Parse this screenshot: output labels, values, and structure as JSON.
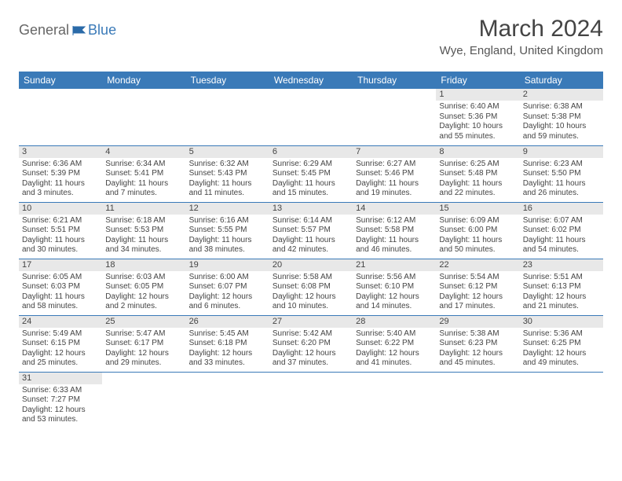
{
  "logo": {
    "general": "General",
    "blue": "Blue"
  },
  "title": "March 2024",
  "location": "Wye, England, United Kingdom",
  "colors": {
    "header_bg": "#3a7ab8",
    "header_text": "#ffffff",
    "daynum_bg": "#e8e8e8",
    "row_border": "#3a7ab8",
    "body_text": "#444444"
  },
  "typography": {
    "title_fontsize": 30,
    "location_fontsize": 15,
    "header_fontsize": 12,
    "daynum_fontsize": 11,
    "data_fontsize": 10
  },
  "day_headers": [
    "Sunday",
    "Monday",
    "Tuesday",
    "Wednesday",
    "Thursday",
    "Friday",
    "Saturday"
  ],
  "weeks": [
    [
      null,
      null,
      null,
      null,
      null,
      {
        "n": "1",
        "sunrise": "Sunrise: 6:40 AM",
        "sunset": "Sunset: 5:36 PM",
        "daylight": "Daylight: 10 hours and 55 minutes."
      },
      {
        "n": "2",
        "sunrise": "Sunrise: 6:38 AM",
        "sunset": "Sunset: 5:38 PM",
        "daylight": "Daylight: 10 hours and 59 minutes."
      }
    ],
    [
      {
        "n": "3",
        "sunrise": "Sunrise: 6:36 AM",
        "sunset": "Sunset: 5:39 PM",
        "daylight": "Daylight: 11 hours and 3 minutes."
      },
      {
        "n": "4",
        "sunrise": "Sunrise: 6:34 AM",
        "sunset": "Sunset: 5:41 PM",
        "daylight": "Daylight: 11 hours and 7 minutes."
      },
      {
        "n": "5",
        "sunrise": "Sunrise: 6:32 AM",
        "sunset": "Sunset: 5:43 PM",
        "daylight": "Daylight: 11 hours and 11 minutes."
      },
      {
        "n": "6",
        "sunrise": "Sunrise: 6:29 AM",
        "sunset": "Sunset: 5:45 PM",
        "daylight": "Daylight: 11 hours and 15 minutes."
      },
      {
        "n": "7",
        "sunrise": "Sunrise: 6:27 AM",
        "sunset": "Sunset: 5:46 PM",
        "daylight": "Daylight: 11 hours and 19 minutes."
      },
      {
        "n": "8",
        "sunrise": "Sunrise: 6:25 AM",
        "sunset": "Sunset: 5:48 PM",
        "daylight": "Daylight: 11 hours and 22 minutes."
      },
      {
        "n": "9",
        "sunrise": "Sunrise: 6:23 AM",
        "sunset": "Sunset: 5:50 PM",
        "daylight": "Daylight: 11 hours and 26 minutes."
      }
    ],
    [
      {
        "n": "10",
        "sunrise": "Sunrise: 6:21 AM",
        "sunset": "Sunset: 5:51 PM",
        "daylight": "Daylight: 11 hours and 30 minutes."
      },
      {
        "n": "11",
        "sunrise": "Sunrise: 6:18 AM",
        "sunset": "Sunset: 5:53 PM",
        "daylight": "Daylight: 11 hours and 34 minutes."
      },
      {
        "n": "12",
        "sunrise": "Sunrise: 6:16 AM",
        "sunset": "Sunset: 5:55 PM",
        "daylight": "Daylight: 11 hours and 38 minutes."
      },
      {
        "n": "13",
        "sunrise": "Sunrise: 6:14 AM",
        "sunset": "Sunset: 5:57 PM",
        "daylight": "Daylight: 11 hours and 42 minutes."
      },
      {
        "n": "14",
        "sunrise": "Sunrise: 6:12 AM",
        "sunset": "Sunset: 5:58 PM",
        "daylight": "Daylight: 11 hours and 46 minutes."
      },
      {
        "n": "15",
        "sunrise": "Sunrise: 6:09 AM",
        "sunset": "Sunset: 6:00 PM",
        "daylight": "Daylight: 11 hours and 50 minutes."
      },
      {
        "n": "16",
        "sunrise": "Sunrise: 6:07 AM",
        "sunset": "Sunset: 6:02 PM",
        "daylight": "Daylight: 11 hours and 54 minutes."
      }
    ],
    [
      {
        "n": "17",
        "sunrise": "Sunrise: 6:05 AM",
        "sunset": "Sunset: 6:03 PM",
        "daylight": "Daylight: 11 hours and 58 minutes."
      },
      {
        "n": "18",
        "sunrise": "Sunrise: 6:03 AM",
        "sunset": "Sunset: 6:05 PM",
        "daylight": "Daylight: 12 hours and 2 minutes."
      },
      {
        "n": "19",
        "sunrise": "Sunrise: 6:00 AM",
        "sunset": "Sunset: 6:07 PM",
        "daylight": "Daylight: 12 hours and 6 minutes."
      },
      {
        "n": "20",
        "sunrise": "Sunrise: 5:58 AM",
        "sunset": "Sunset: 6:08 PM",
        "daylight": "Daylight: 12 hours and 10 minutes."
      },
      {
        "n": "21",
        "sunrise": "Sunrise: 5:56 AM",
        "sunset": "Sunset: 6:10 PM",
        "daylight": "Daylight: 12 hours and 14 minutes."
      },
      {
        "n": "22",
        "sunrise": "Sunrise: 5:54 AM",
        "sunset": "Sunset: 6:12 PM",
        "daylight": "Daylight: 12 hours and 17 minutes."
      },
      {
        "n": "23",
        "sunrise": "Sunrise: 5:51 AM",
        "sunset": "Sunset: 6:13 PM",
        "daylight": "Daylight: 12 hours and 21 minutes."
      }
    ],
    [
      {
        "n": "24",
        "sunrise": "Sunrise: 5:49 AM",
        "sunset": "Sunset: 6:15 PM",
        "daylight": "Daylight: 12 hours and 25 minutes."
      },
      {
        "n": "25",
        "sunrise": "Sunrise: 5:47 AM",
        "sunset": "Sunset: 6:17 PM",
        "daylight": "Daylight: 12 hours and 29 minutes."
      },
      {
        "n": "26",
        "sunrise": "Sunrise: 5:45 AM",
        "sunset": "Sunset: 6:18 PM",
        "daylight": "Daylight: 12 hours and 33 minutes."
      },
      {
        "n": "27",
        "sunrise": "Sunrise: 5:42 AM",
        "sunset": "Sunset: 6:20 PM",
        "daylight": "Daylight: 12 hours and 37 minutes."
      },
      {
        "n": "28",
        "sunrise": "Sunrise: 5:40 AM",
        "sunset": "Sunset: 6:22 PM",
        "daylight": "Daylight: 12 hours and 41 minutes."
      },
      {
        "n": "29",
        "sunrise": "Sunrise: 5:38 AM",
        "sunset": "Sunset: 6:23 PM",
        "daylight": "Daylight: 12 hours and 45 minutes."
      },
      {
        "n": "30",
        "sunrise": "Sunrise: 5:36 AM",
        "sunset": "Sunset: 6:25 PM",
        "daylight": "Daylight: 12 hours and 49 minutes."
      }
    ],
    [
      {
        "n": "31",
        "sunrise": "Sunrise: 6:33 AM",
        "sunset": "Sunset: 7:27 PM",
        "daylight": "Daylight: 12 hours and 53 minutes."
      },
      null,
      null,
      null,
      null,
      null,
      null
    ]
  ]
}
